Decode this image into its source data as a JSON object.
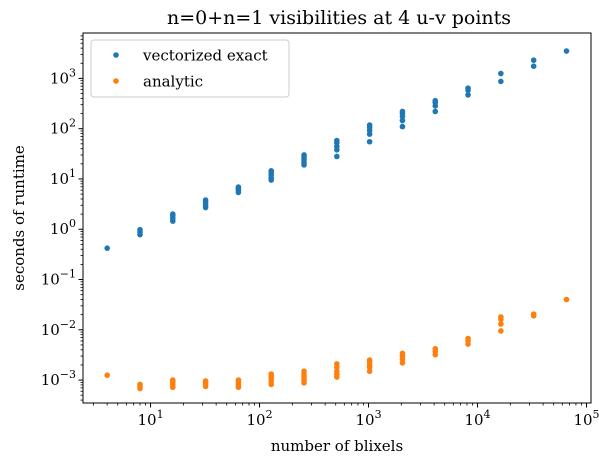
{
  "chart_data": {
    "type": "scatter",
    "title": "n=0+n=1 visibilities at 4 u-v points",
    "xlabel": "number of blixels",
    "ylabel": "seconds of runtime",
    "xscale": "log",
    "yscale": "log",
    "xlim": [
      2.4,
      110000
    ],
    "ylim": [
      0.00035,
      8000
    ],
    "x_ticks": [
      {
        "value": 10,
        "base": "10",
        "exp": "1"
      },
      {
        "value": 100,
        "base": "10",
        "exp": "2"
      },
      {
        "value": 1000,
        "base": "10",
        "exp": "3"
      },
      {
        "value": 10000,
        "base": "10",
        "exp": "4"
      },
      {
        "value": 100000,
        "base": "10",
        "exp": "5"
      }
    ],
    "y_ticks": [
      {
        "value": 0.001,
        "base": "10",
        "exp": "−3"
      },
      {
        "value": 0.01,
        "base": "10",
        "exp": "−2"
      },
      {
        "value": 0.1,
        "base": "10",
        "exp": "−1"
      },
      {
        "value": 1,
        "base": "10",
        "exp": "0"
      },
      {
        "value": 10,
        "base": "10",
        "exp": "1"
      },
      {
        "value": 100,
        "base": "10",
        "exp": "2"
      },
      {
        "value": 1000,
        "base": "10",
        "exp": "3"
      }
    ],
    "grid": false,
    "legend": "top-left",
    "series": [
      {
        "name": "vectorized exact",
        "color": "#1f77b4",
        "points": [
          [
            4,
            0.42
          ],
          [
            8,
            0.78
          ],
          [
            8,
            0.88
          ],
          [
            8,
            0.98
          ],
          [
            16,
            1.45
          ],
          [
            16,
            1.65
          ],
          [
            16,
            1.85
          ],
          [
            16,
            2.0
          ],
          [
            32,
            2.7
          ],
          [
            32,
            3.0
          ],
          [
            32,
            3.4
          ],
          [
            32,
            3.8
          ],
          [
            64,
            5.4
          ],
          [
            64,
            5.9
          ],
          [
            64,
            6.4
          ],
          [
            64,
            6.9
          ],
          [
            128,
            9.5
          ],
          [
            128,
            10.5
          ],
          [
            128,
            12.0
          ],
          [
            128,
            13.5
          ],
          [
            128,
            14.5
          ],
          [
            256,
            19
          ],
          [
            256,
            21
          ],
          [
            256,
            24
          ],
          [
            256,
            27
          ],
          [
            256,
            30
          ],
          [
            512,
            28
          ],
          [
            512,
            38
          ],
          [
            512,
            44
          ],
          [
            512,
            52
          ],
          [
            512,
            58
          ],
          [
            1024,
            55
          ],
          [
            1024,
            78
          ],
          [
            1024,
            92
          ],
          [
            1024,
            105
          ],
          [
            1024,
            118
          ],
          [
            2048,
            110
          ],
          [
            2048,
            145
          ],
          [
            2048,
            175
          ],
          [
            2048,
            200
          ],
          [
            2048,
            220
          ],
          [
            4096,
            220
          ],
          [
            4096,
            285
          ],
          [
            4096,
            330
          ],
          [
            4096,
            360
          ],
          [
            8192,
            470
          ],
          [
            8192,
            580
          ],
          [
            8192,
            640
          ],
          [
            16384,
            870
          ],
          [
            16384,
            1250
          ],
          [
            32768,
            1750
          ],
          [
            32768,
            2300
          ],
          [
            65536,
            3500
          ]
        ]
      },
      {
        "name": "analytic",
        "color": "#ff7f0e",
        "points": [
          [
            4,
            0.00125
          ],
          [
            8,
            0.00068
          ],
          [
            8,
            0.00075
          ],
          [
            8,
            0.00082
          ],
          [
            16,
            0.00072
          ],
          [
            16,
            0.00082
          ],
          [
            16,
            0.00092
          ],
          [
            16,
            0.001
          ],
          [
            32,
            0.00075
          ],
          [
            32,
            0.00083
          ],
          [
            32,
            0.00092
          ],
          [
            32,
            0.00096
          ],
          [
            64,
            0.00072
          ],
          [
            64,
            0.0008
          ],
          [
            64,
            0.0009
          ],
          [
            64,
            0.001
          ],
          [
            128,
            0.00082
          ],
          [
            128,
            0.00095
          ],
          [
            128,
            0.00108
          ],
          [
            128,
            0.0012
          ],
          [
            128,
            0.00132
          ],
          [
            256,
            0.00088
          ],
          [
            256,
            0.001
          ],
          [
            256,
            0.00115
          ],
          [
            256,
            0.0013
          ],
          [
            256,
            0.0015
          ],
          [
            512,
            0.00115
          ],
          [
            512,
            0.0013
          ],
          [
            512,
            0.0015
          ],
          [
            512,
            0.0018
          ],
          [
            512,
            0.0021
          ],
          [
            1024,
            0.0015
          ],
          [
            1024,
            0.0018
          ],
          [
            1024,
            0.002
          ],
          [
            1024,
            0.0023
          ],
          [
            1024,
            0.0025
          ],
          [
            2048,
            0.0022
          ],
          [
            2048,
            0.0026
          ],
          [
            2048,
            0.003
          ],
          [
            2048,
            0.0034
          ],
          [
            4096,
            0.0032
          ],
          [
            4096,
            0.0037
          ],
          [
            4096,
            0.0042
          ],
          [
            8192,
            0.0052
          ],
          [
            8192,
            0.006
          ],
          [
            8192,
            0.0067
          ],
          [
            16384,
            0.0095
          ],
          [
            16384,
            0.013
          ],
          [
            16384,
            0.016
          ],
          [
            16384,
            0.018
          ],
          [
            32768,
            0.019
          ],
          [
            32768,
            0.0205
          ],
          [
            65536,
            0.04
          ]
        ]
      }
    ]
  }
}
